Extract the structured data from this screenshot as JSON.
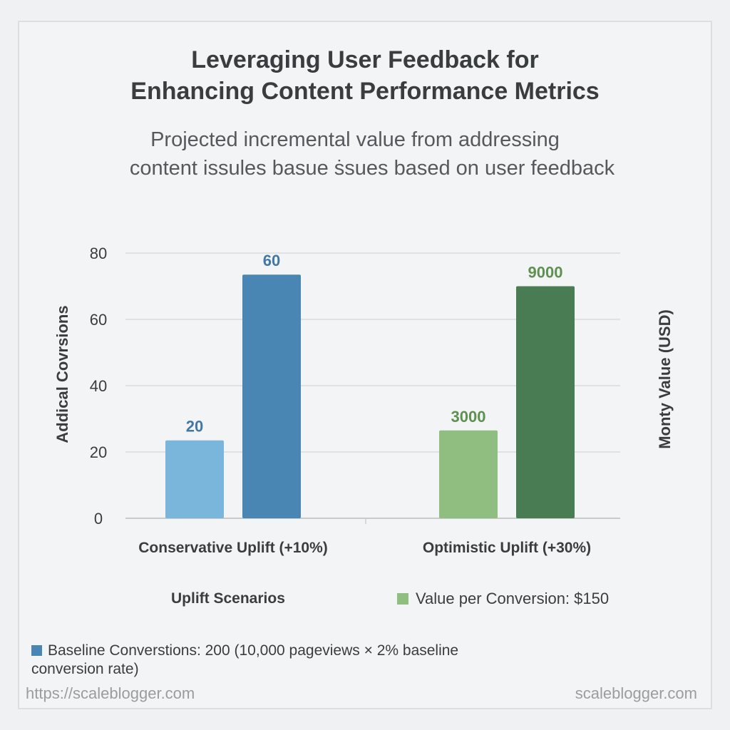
{
  "chart_data": {
    "type": "bar",
    "title": [
      "Leveraging User Feedback for",
      "Enhancing Content Performance Metrics"
    ],
    "subtitle": [
      "Projected incremental value from addressing",
      "content issules basue ṡsues based on user feedback"
    ],
    "xlabel": "Uplift Scenarios",
    "ylabel": "Addical Covrsions",
    "y2label": "Monty Value (USD)",
    "ylim": [
      0,
      80
    ],
    "yticks": [
      0,
      20,
      40,
      60,
      80
    ],
    "grid": true,
    "categories": [
      "Conservative Uplift (+10%)",
      "Optimistic Uplift (+30%)"
    ],
    "series": [
      {
        "group": 0,
        "value": 23.5,
        "label": "20",
        "color": "#7ab6db",
        "label_color": "#4277a8"
      },
      {
        "group": 0,
        "value": 73.5,
        "label": "60",
        "color": "#4a86b4",
        "label_color": "#4277a8"
      },
      {
        "group": 1,
        "value": 26.5,
        "label": "3000",
        "color": "#8fbe80",
        "label_color": "#5d9150"
      },
      {
        "group": 1,
        "value": 70,
        "label": "9000",
        "color": "#4a7c54",
        "label_color": "#5d9150"
      }
    ],
    "legend": {
      "value_per_conversion": "Value per Conversion: $150",
      "baseline": "Baseline Converstions: 200 (10,000 pageviews × 2% baseline conversion rate)"
    }
  },
  "footer": {
    "left": "https://scaleblogger.com",
    "right": "scaleblogger.com"
  }
}
